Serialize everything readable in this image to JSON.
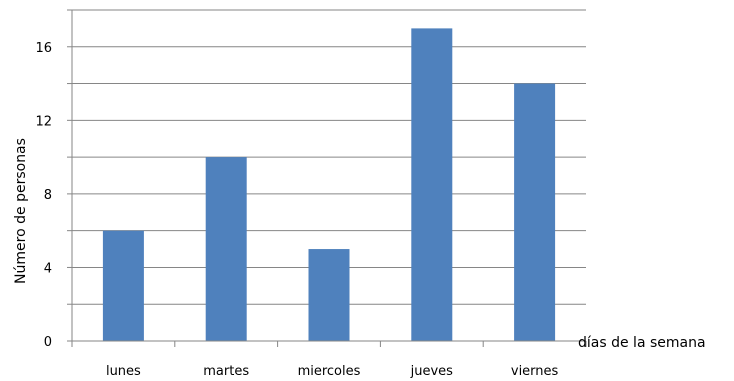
{
  "chart_data": {
    "type": "bar",
    "categories": [
      "lunes",
      "martes",
      "miercoles",
      "jueves",
      "viernes"
    ],
    "values": [
      6,
      10,
      5,
      17,
      14
    ],
    "title": "",
    "xlabel": "días de la semana",
    "ylabel": "Número de personas",
    "ylim": [
      0,
      18
    ],
    "yticks": [
      0,
      4,
      8,
      12,
      16
    ],
    "grid": true,
    "bar_color": "#4F81BD",
    "gridline_color": "#868686",
    "axis_color": "#868686"
  }
}
